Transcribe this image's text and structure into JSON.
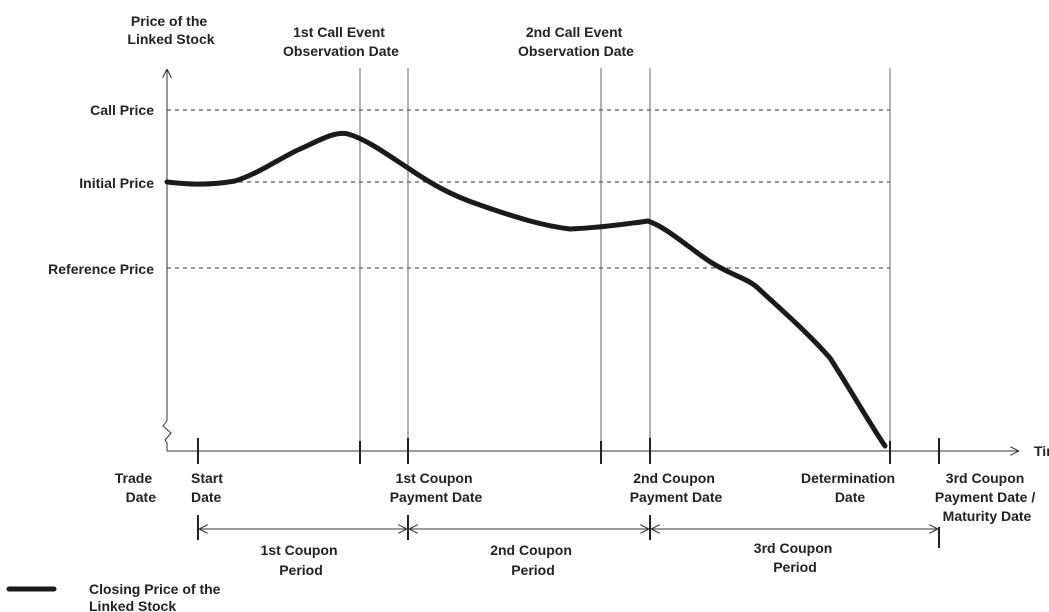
{
  "y_axis_label": [
    "Price of the",
    "Linked Stock"
  ],
  "x_axis_label": "Time",
  "top_labels": {
    "first_call_event": [
      "1st Call Event",
      "Observation Date"
    ],
    "second_call_event": [
      "2nd Call Event",
      "Observation Date"
    ]
  },
  "price_levels": {
    "call_price": "Call Price",
    "initial_price": "Initial Price",
    "reference_price": "Reference Price"
  },
  "dates": {
    "trade_date": [
      "Trade",
      "Date"
    ],
    "start_date": [
      "Start",
      "Date"
    ],
    "first_coupon_payment": [
      "1st Coupon",
      "Payment Date"
    ],
    "second_coupon_payment": [
      "2nd Coupon",
      "Payment Date"
    ],
    "determination_date": [
      "Determination",
      "Date"
    ],
    "maturity": [
      "3rd Coupon",
      "Payment Date /",
      "Maturity Date"
    ]
  },
  "periods": {
    "first": [
      "1st Coupon",
      "Period"
    ],
    "second": [
      "2nd Coupon",
      "Period"
    ],
    "third": [
      "3rd Coupon",
      "Period"
    ]
  },
  "legend": {
    "label": [
      "Closing Price of the",
      "Linked Stock"
    ]
  }
}
